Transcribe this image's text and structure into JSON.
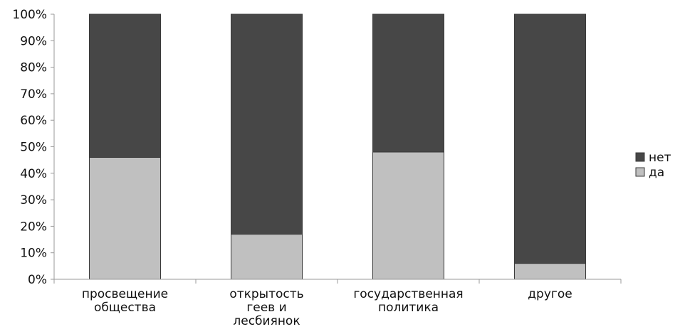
{
  "chart_data": {
    "type": "bar",
    "stacked": true,
    "normalized": true,
    "categories": [
      [
        "просвещение",
        "общества"
      ],
      [
        "открытость",
        "геев и",
        "лесбиянок"
      ],
      [
        "государственная",
        "политика"
      ],
      [
        "другое"
      ]
    ],
    "series": [
      {
        "name": "да",
        "color": "#c0c0c0",
        "values": [
          46,
          17,
          48,
          6
        ]
      },
      {
        "name": "нет",
        "color": "#474747",
        "values": [
          54,
          83,
          52,
          94
        ]
      }
    ],
    "yticks": [
      "0%",
      "10%",
      "20%",
      "30%",
      "40%",
      "50%",
      "60%",
      "70%",
      "80%",
      "90%",
      "100%"
    ],
    "ylim": [
      0,
      100
    ],
    "legend_position": "right",
    "legend_order": [
      "нет",
      "да"
    ],
    "grid": false
  }
}
